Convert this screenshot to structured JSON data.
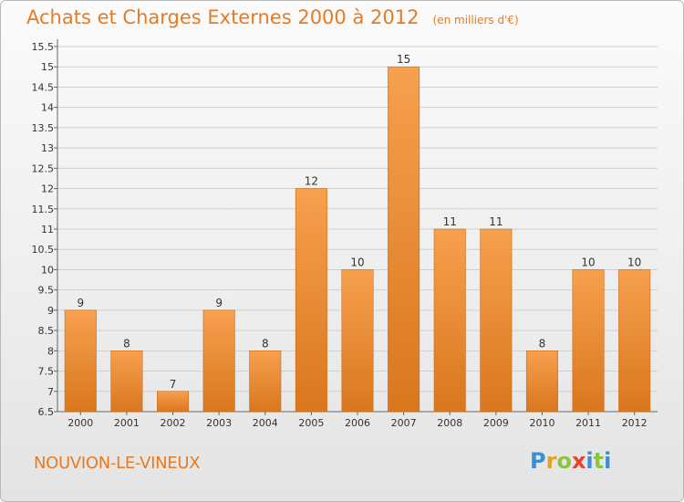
{
  "title": "Achats et Charges Externes 2000 à 2012",
  "unit": "(en milliers d'€)",
  "commune": "NOUVION-LE-VINEUX",
  "logo_text": "Proxiti",
  "colors": {
    "bar_top": "#f7a04e",
    "bar_bottom": "#d9771e",
    "text_accent": "#e87a22"
  },
  "chart_data": {
    "type": "bar",
    "title": "Achats et Charges Externes 2000 à 2012",
    "subtitle": "(en milliers d'€)",
    "categories": [
      "2000",
      "2001",
      "2002",
      "2003",
      "2004",
      "2005",
      "2006",
      "2007",
      "2008",
      "2009",
      "2010",
      "2011",
      "2012"
    ],
    "values": [
      9,
      8,
      7,
      9,
      8,
      12,
      10,
      15,
      11,
      11,
      8,
      10,
      10
    ],
    "ylim": [
      6.5,
      15.5
    ],
    "yticks": [
      6.5,
      7,
      7.5,
      8,
      8.5,
      9,
      9.5,
      10,
      10.5,
      11,
      11.5,
      12,
      12.5,
      13,
      13.5,
      14,
      14.5,
      15,
      15.5
    ],
    "grid": true,
    "xlabel": "",
    "ylabel": ""
  }
}
